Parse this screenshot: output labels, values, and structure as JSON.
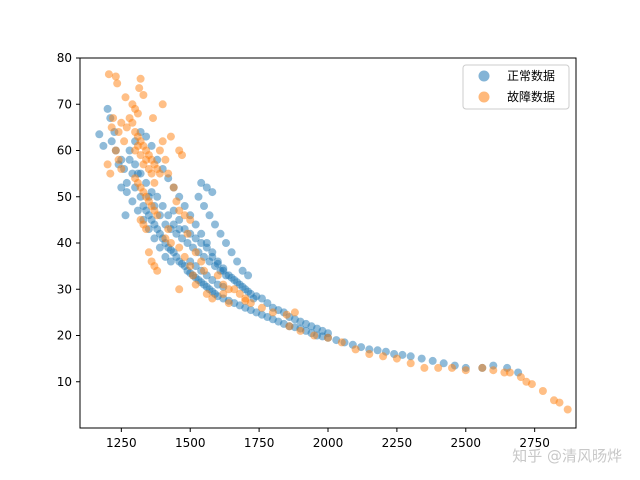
{
  "chart_data": {
    "type": "scatter",
    "xlim": [
      1100,
      2900
    ],
    "ylim": [
      0,
      80
    ],
    "x_ticks": [
      1250,
      1500,
      1750,
      2000,
      2250,
      2500,
      2750
    ],
    "y_ticks": [
      10,
      20,
      30,
      40,
      50,
      60,
      70,
      80
    ],
    "grid": false,
    "legend_position": "top-right",
    "series": [
      {
        "name": "正常数据",
        "color": "#1f77b4",
        "points": [
          [
            1170,
            63.5
          ],
          [
            1185,
            61
          ],
          [
            1200,
            69
          ],
          [
            1210,
            67
          ],
          [
            1215,
            62
          ],
          [
            1225,
            64
          ],
          [
            1230,
            60
          ],
          [
            1240,
            57
          ],
          [
            1250,
            58
          ],
          [
            1260,
            56
          ],
          [
            1265,
            46
          ],
          [
            1270,
            53
          ],
          [
            1280,
            60
          ],
          [
            1290,
            55
          ],
          [
            1300,
            52
          ],
          [
            1310,
            55
          ],
          [
            1320,
            50
          ],
          [
            1330,
            48
          ],
          [
            1340,
            47
          ],
          [
            1350,
            46
          ],
          [
            1360,
            45
          ],
          [
            1370,
            44
          ],
          [
            1380,
            43
          ],
          [
            1390,
            42
          ],
          [
            1400,
            41
          ],
          [
            1410,
            40
          ],
          [
            1420,
            39
          ],
          [
            1430,
            38.5
          ],
          [
            1440,
            38
          ],
          [
            1450,
            37
          ],
          [
            1460,
            36
          ],
          [
            1470,
            35.5
          ],
          [
            1480,
            35
          ],
          [
            1490,
            34
          ],
          [
            1500,
            33.5
          ],
          [
            1510,
            33
          ],
          [
            1520,
            32.5
          ],
          [
            1530,
            32
          ],
          [
            1540,
            31.5
          ],
          [
            1550,
            31
          ],
          [
            1560,
            30.5
          ],
          [
            1570,
            30
          ],
          [
            1580,
            29.5
          ],
          [
            1590,
            29
          ],
          [
            1600,
            28.5
          ],
          [
            1620,
            28
          ],
          [
            1640,
            27.5
          ],
          [
            1660,
            27
          ],
          [
            1680,
            26.5
          ],
          [
            1700,
            26
          ],
          [
            1720,
            25.5
          ],
          [
            1740,
            25
          ],
          [
            1760,
            24.5
          ],
          [
            1780,
            24
          ],
          [
            1800,
            23.5
          ],
          [
            1820,
            23
          ],
          [
            1840,
            22.5
          ],
          [
            1860,
            22
          ],
          [
            1880,
            21.8
          ],
          [
            1900,
            21.5
          ],
          [
            1920,
            21
          ],
          [
            1940,
            20.5
          ],
          [
            1960,
            20
          ],
          [
            1980,
            19.8
          ],
          [
            2000,
            19.5
          ],
          [
            2030,
            19
          ],
          [
            2060,
            18.5
          ],
          [
            2090,
            18
          ],
          [
            2120,
            17.5
          ],
          [
            2150,
            17
          ],
          [
            2180,
            16.8
          ],
          [
            2210,
            16.5
          ],
          [
            2240,
            16
          ],
          [
            2270,
            15.8
          ],
          [
            2300,
            15.5
          ],
          [
            2340,
            15
          ],
          [
            2380,
            14.5
          ],
          [
            2420,
            14
          ],
          [
            2460,
            13.5
          ],
          [
            2500,
            13
          ],
          [
            2560,
            13
          ],
          [
            2600,
            13.5
          ],
          [
            2650,
            13
          ],
          [
            2690,
            12
          ],
          [
            1300,
            62
          ],
          [
            1320,
            64
          ],
          [
            1340,
            63
          ],
          [
            1360,
            61
          ],
          [
            1380,
            58
          ],
          [
            1400,
            56
          ],
          [
            1420,
            54
          ],
          [
            1440,
            52
          ],
          [
            1460,
            50
          ],
          [
            1480,
            48
          ],
          [
            1500,
            46
          ],
          [
            1520,
            44
          ],
          [
            1540,
            42
          ],
          [
            1560,
            40
          ],
          [
            1580,
            38
          ],
          [
            1600,
            36
          ],
          [
            1620,
            34
          ],
          [
            1640,
            33
          ],
          [
            1660,
            32
          ],
          [
            1680,
            31
          ],
          [
            1700,
            30
          ],
          [
            1720,
            29
          ],
          [
            1740,
            28.5
          ],
          [
            1760,
            28
          ],
          [
            1780,
            27
          ],
          [
            1800,
            26
          ],
          [
            1820,
            25.5
          ],
          [
            1840,
            25
          ],
          [
            1860,
            24
          ],
          [
            1880,
            23.5
          ],
          [
            1900,
            23
          ],
          [
            1920,
            22.5
          ],
          [
            1940,
            22
          ],
          [
            1960,
            21.5
          ],
          [
            1980,
            21
          ],
          [
            2000,
            20.5
          ],
          [
            1350,
            50
          ],
          [
            1370,
            48
          ],
          [
            1390,
            46
          ],
          [
            1410,
            44
          ],
          [
            1430,
            43
          ],
          [
            1450,
            42
          ],
          [
            1470,
            41
          ],
          [
            1490,
            40
          ],
          [
            1510,
            39
          ],
          [
            1530,
            38
          ],
          [
            1550,
            37
          ],
          [
            1570,
            36
          ],
          [
            1590,
            35
          ],
          [
            1610,
            34
          ],
          [
            1630,
            33
          ],
          [
            1650,
            32.5
          ],
          [
            1670,
            31.5
          ],
          [
            1690,
            30.5
          ],
          [
            1710,
            29.5
          ],
          [
            1730,
            28
          ],
          [
            1440,
            47
          ],
          [
            1460,
            45
          ],
          [
            1480,
            43
          ],
          [
            1500,
            42
          ],
          [
            1520,
            41
          ],
          [
            1540,
            40
          ],
          [
            1560,
            39
          ],
          [
            1580,
            37
          ],
          [
            1600,
            35.5
          ],
          [
            1620,
            34.5
          ],
          [
            1530,
            50
          ],
          [
            1550,
            48
          ],
          [
            1570,
            46
          ],
          [
            1590,
            44
          ],
          [
            1610,
            42
          ],
          [
            1630,
            40
          ],
          [
            1650,
            38
          ],
          [
            1670,
            36
          ],
          [
            1690,
            34
          ],
          [
            1710,
            33
          ],
          [
            1280,
            58
          ],
          [
            1300,
            57
          ],
          [
            1320,
            55
          ],
          [
            1340,
            53
          ],
          [
            1360,
            51
          ],
          [
            1380,
            50
          ],
          [
            1400,
            48
          ],
          [
            1420,
            46
          ],
          [
            1440,
            44
          ],
          [
            1460,
            43
          ],
          [
            1250,
            52
          ],
          [
            1270,
            51
          ],
          [
            1290,
            49
          ],
          [
            1310,
            47
          ],
          [
            1330,
            45
          ],
          [
            1350,
            43
          ],
          [
            1370,
            41
          ],
          [
            1390,
            39
          ],
          [
            1410,
            37
          ],
          [
            1430,
            36
          ],
          [
            1540,
            53
          ],
          [
            1560,
            52
          ],
          [
            1580,
            51
          ],
          [
            1500,
            36
          ],
          [
            1520,
            35
          ],
          [
            1540,
            34
          ],
          [
            1560,
            33
          ],
          [
            1580,
            32
          ],
          [
            1600,
            31
          ],
          [
            1620,
            30.5
          ]
        ]
      },
      {
        "name": "故障数据",
        "color": "#ff7f0e",
        "points": [
          [
            1205,
            76.5
          ],
          [
            1230,
            76
          ],
          [
            1235,
            74.5
          ],
          [
            1320,
            75.5
          ],
          [
            1315,
            73.5
          ],
          [
            1330,
            72
          ],
          [
            1265,
            71.5
          ],
          [
            1290,
            70
          ],
          [
            1300,
            69
          ],
          [
            1310,
            68
          ],
          [
            1400,
            70
          ],
          [
            1365,
            67
          ],
          [
            1270,
            65
          ],
          [
            1280,
            67
          ],
          [
            1290,
            66
          ],
          [
            1300,
            64
          ],
          [
            1310,
            63
          ],
          [
            1320,
            62
          ],
          [
            1330,
            61
          ],
          [
            1340,
            60
          ],
          [
            1350,
            59
          ],
          [
            1360,
            58
          ],
          [
            1370,
            57
          ],
          [
            1380,
            56
          ],
          [
            1390,
            55
          ],
          [
            1300,
            54
          ],
          [
            1310,
            53
          ],
          [
            1320,
            52
          ],
          [
            1330,
            51
          ],
          [
            1340,
            50
          ],
          [
            1350,
            49
          ],
          [
            1360,
            48
          ],
          [
            1370,
            47
          ],
          [
            1380,
            46
          ],
          [
            1320,
            45
          ],
          [
            1330,
            44
          ],
          [
            1340,
            43
          ],
          [
            1350,
            56
          ],
          [
            1360,
            55
          ],
          [
            1370,
            53
          ],
          [
            1340,
            58
          ],
          [
            1330,
            57
          ],
          [
            1320,
            59
          ],
          [
            1310,
            61
          ],
          [
            1300,
            60
          ],
          [
            1390,
            60
          ],
          [
            1400,
            62
          ],
          [
            1410,
            58
          ],
          [
            1420,
            55
          ],
          [
            1430,
            63
          ],
          [
            1230,
            60
          ],
          [
            1240,
            58
          ],
          [
            1250,
            56
          ],
          [
            1260,
            62
          ],
          [
            1250,
            66
          ],
          [
            1240,
            64
          ],
          [
            1220,
            67
          ],
          [
            1215,
            65
          ],
          [
            1210,
            55
          ],
          [
            1200,
            57
          ],
          [
            1460,
            60
          ],
          [
            1470,
            59
          ],
          [
            1440,
            52
          ],
          [
            1450,
            49
          ],
          [
            1460,
            47
          ],
          [
            1480,
            46
          ],
          [
            1500,
            45
          ],
          [
            1490,
            42
          ],
          [
            1420,
            43
          ],
          [
            1410,
            41
          ],
          [
            1430,
            40
          ],
          [
            1460,
            39
          ],
          [
            1480,
            37
          ],
          [
            1520,
            38
          ],
          [
            1540,
            36
          ],
          [
            1500,
            35
          ],
          [
            1510,
            33
          ],
          [
            1550,
            34
          ],
          [
            1600,
            33
          ],
          [
            1620,
            31
          ],
          [
            1640,
            30
          ],
          [
            1660,
            30
          ],
          [
            1680,
            29
          ],
          [
            1700,
            28
          ],
          [
            1640,
            27
          ],
          [
            1720,
            27
          ],
          [
            1760,
            26
          ],
          [
            1800,
            25
          ],
          [
            1850,
            24.5
          ],
          [
            1880,
            25
          ],
          [
            1860,
            22
          ],
          [
            1900,
            21
          ],
          [
            1950,
            20
          ],
          [
            2000,
            19.5
          ],
          [
            2050,
            18.5
          ],
          [
            2100,
            17
          ],
          [
            2150,
            16
          ],
          [
            2200,
            15.5
          ],
          [
            2250,
            15
          ],
          [
            2300,
            14
          ],
          [
            2350,
            13
          ],
          [
            2400,
            13
          ],
          [
            2450,
            13
          ],
          [
            2500,
            12.5
          ],
          [
            2560,
            13
          ],
          [
            2600,
            12.5
          ],
          [
            2640,
            12
          ],
          [
            2660,
            12
          ],
          [
            2700,
            11
          ],
          [
            2720,
            10
          ],
          [
            2740,
            9.5
          ],
          [
            2780,
            8
          ],
          [
            2820,
            6
          ],
          [
            2840,
            5.5
          ],
          [
            2870,
            4
          ],
          [
            1350,
            38
          ],
          [
            1360,
            36
          ],
          [
            1370,
            35
          ],
          [
            1380,
            34
          ],
          [
            1460,
            30
          ],
          [
            1520,
            31
          ],
          [
            1560,
            29
          ],
          [
            1580,
            28
          ],
          [
            1620,
            29
          ],
          [
            1700,
            27.5
          ]
        ]
      }
    ]
  },
  "watermark": "知乎 @清风旸烨"
}
